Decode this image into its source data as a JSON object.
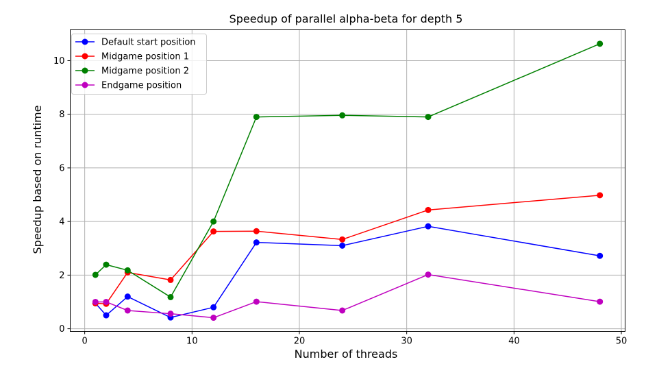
{
  "chart_data": {
    "type": "line",
    "title": "Speedup of parallel alpha-beta for depth 5",
    "xlabel": "Number of threads",
    "ylabel": "Speedup based on runtime",
    "xlim": [
      -1.35,
      50.35
    ],
    "ylim": [
      -0.1,
      11.15
    ],
    "xticks": [
      0,
      10,
      20,
      30,
      40,
      50
    ],
    "yticks": [
      0,
      2,
      4,
      6,
      8,
      10
    ],
    "grid": true,
    "legend_position": "top-left",
    "x": [
      1,
      2,
      4,
      8,
      12,
      16,
      24,
      32,
      48
    ],
    "series": [
      {
        "name": "Default start position",
        "color": "#0000ff",
        "values": [
          0.95,
          0.5,
          1.2,
          0.42,
          0.8,
          3.22,
          3.1,
          3.82,
          2.72
        ]
      },
      {
        "name": "Midgame position 1",
        "color": "#ff0000",
        "values": [
          0.95,
          0.93,
          2.1,
          1.82,
          3.63,
          3.64,
          3.33,
          4.43,
          4.98
        ]
      },
      {
        "name": "Midgame position 2",
        "color": "#008000",
        "values": [
          2.01,
          2.39,
          2.18,
          1.18,
          4.0,
          7.9,
          7.96,
          7.9,
          10.63
        ]
      },
      {
        "name": "Endgame position",
        "color": "#bf00bf",
        "values": [
          1.0,
          1.0,
          0.68,
          0.56,
          0.41,
          1.01,
          0.68,
          2.02,
          1.01
        ]
      }
    ]
  }
}
